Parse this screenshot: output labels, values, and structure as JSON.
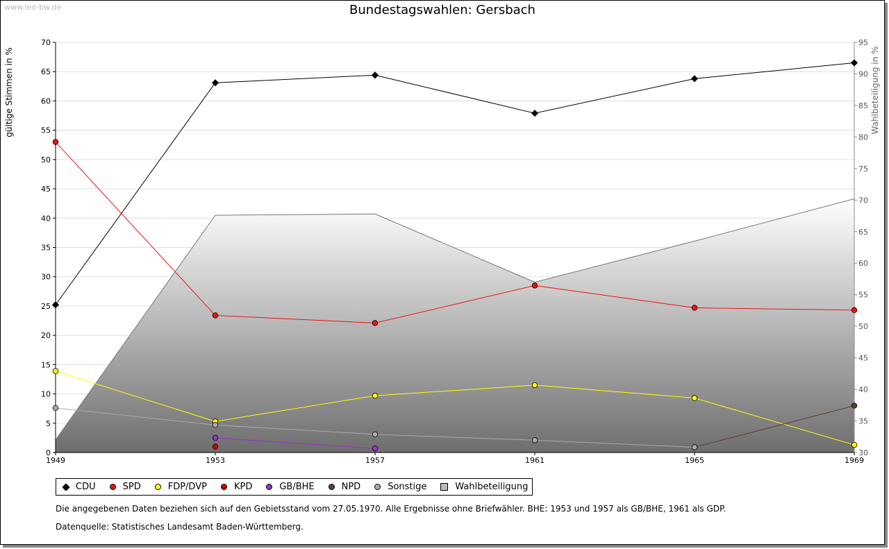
{
  "watermark": "www.leo-bw.de",
  "notes": {
    "line1": "Die angegebenen Daten beziehen sich auf den Gebietsstand vom 27.05.1970. Alle Ergebnisse ohne Briefwähler. BHE: 1953 und 1957 als GB/BHE, 1961 als GDP.",
    "line2": "Datenquelle: Statistisches Landesamt Baden-Württemberg."
  },
  "chart_data": {
    "type": "line",
    "title": "Bundestagswahlen: Gersbach",
    "xlabel": "",
    "ylabel": "gültige Stimmen in %",
    "y2label": "Wahlbeteiligung in %",
    "x": [
      "1949",
      "1953",
      "1957",
      "1961",
      "1965",
      "1969"
    ],
    "ylim": [
      0,
      70
    ],
    "yticks": [
      "0",
      "5",
      "10",
      "15",
      "20",
      "25",
      "30",
      "35",
      "40",
      "45",
      "50",
      "55",
      "60",
      "65",
      "70"
    ],
    "y2lim": [
      30,
      95
    ],
    "y2ticks": [
      "30",
      "35",
      "40",
      "45",
      "50",
      "55",
      "60",
      "65",
      "70",
      "75",
      "80",
      "85",
      "90",
      "95"
    ],
    "grid": true,
    "legend_position": "bottom",
    "area": {
      "name": "Wahlbeteiligung",
      "color": "#bbbbbb",
      "values": [
        32,
        67.6,
        67.8,
        57,
        63.5,
        70.2
      ]
    },
    "series": [
      {
        "name": "CDU",
        "color": "#000000",
        "marker": "diamond",
        "values": [
          25.2,
          63.1,
          64.4,
          57.9,
          63.8,
          66.5
        ]
      },
      {
        "name": "SPD",
        "color": "#ee1111",
        "marker": "circle",
        "values": [
          53.0,
          23.4,
          22.1,
          28.5,
          24.7,
          24.3
        ]
      },
      {
        "name": "FDP/DVP",
        "color": "#ffff00",
        "marker": "circle",
        "values": [
          13.9,
          5.3,
          9.7,
          11.5,
          9.3,
          1.3
        ]
      },
      {
        "name": "KPD",
        "color": "#cc0000",
        "marker": "circle",
        "values": [
          null,
          1.0,
          null,
          null,
          null,
          null
        ]
      },
      {
        "name": "GB/BHE",
        "color": "#9933cc",
        "marker": "circle",
        "values": [
          null,
          2.5,
          0.7,
          null,
          null,
          null
        ]
      },
      {
        "name": "NPD",
        "color": "#5a4030",
        "marker": "circle",
        "values": [
          null,
          null,
          null,
          null,
          0.9,
          8.0
        ]
      },
      {
        "name": "Sonstige",
        "color": "#aaaaaa",
        "marker": "circle",
        "values": [
          7.6,
          4.7,
          3.1,
          2.1,
          0.9,
          null
        ]
      }
    ]
  }
}
